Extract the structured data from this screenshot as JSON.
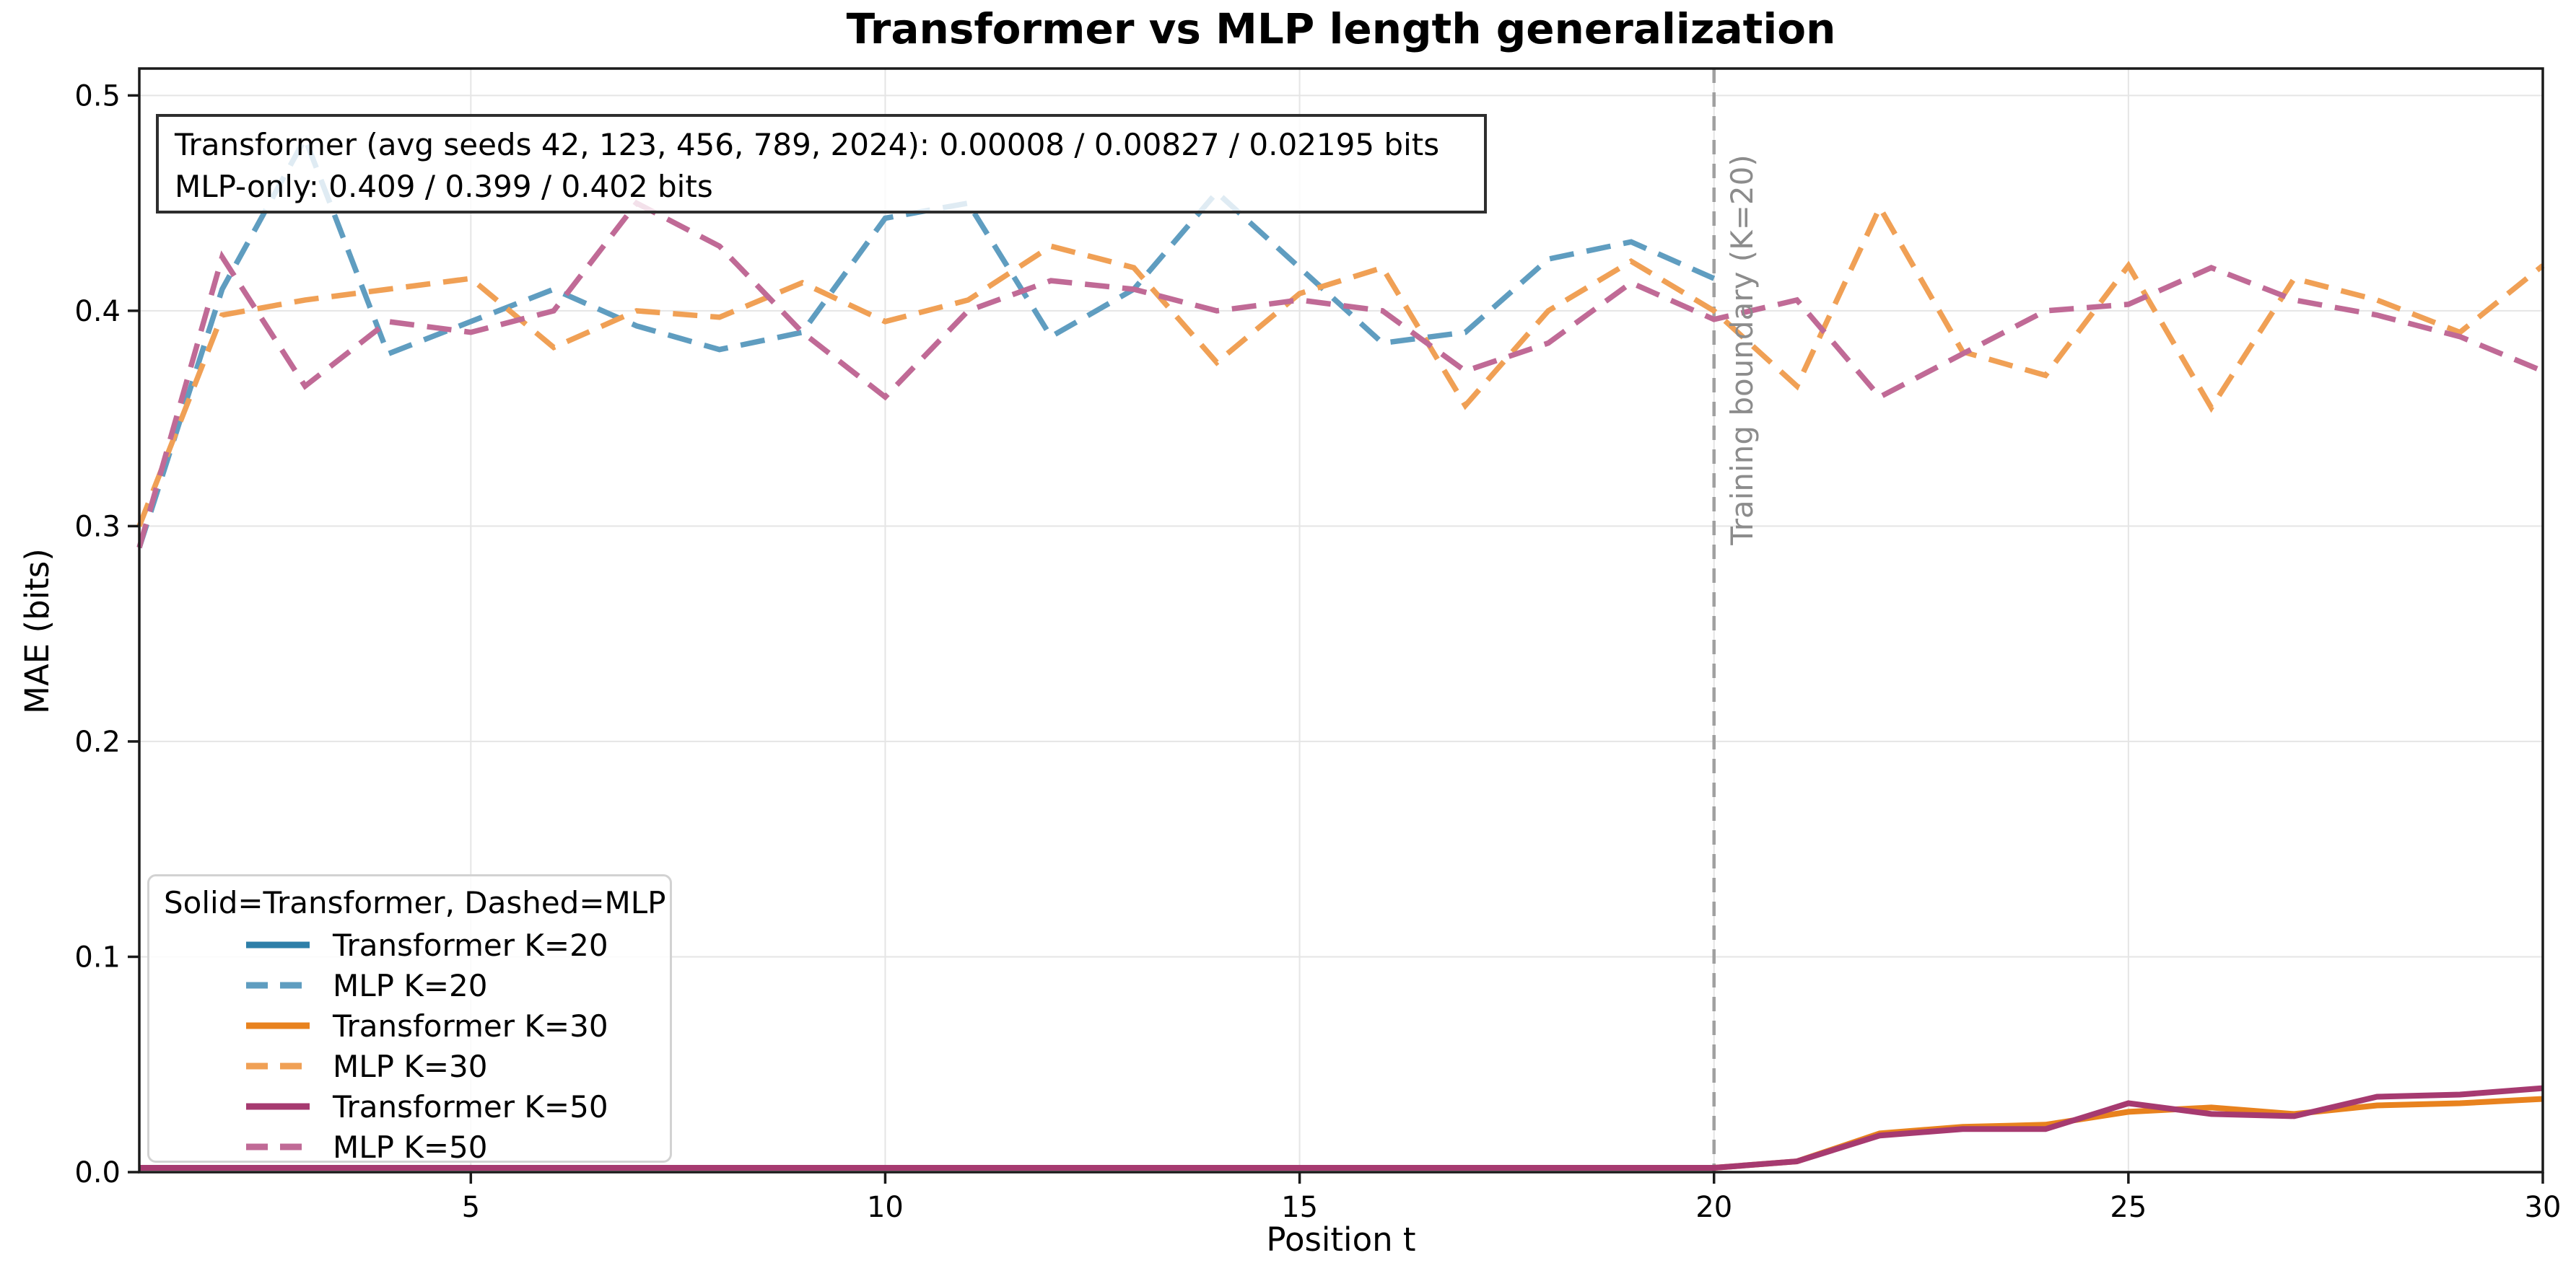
{
  "title": "Transformer vs MLP length generalization",
  "annotation": {
    "lines": [
      "Transformer (avg seeds 42, 123, 456, 789, 2024): 0.00008 / 0.00827 / 0.02195 bits",
      "MLP-only: 0.409 / 0.399 / 0.402 bits"
    ]
  },
  "boundary": {
    "x": 20,
    "label": "Training boundary (K=20)",
    "line_color": "#a0a0a0",
    "label_color": "#8c8c8c"
  },
  "legend": {
    "title": "Solid=Transformer, Dashed=MLP",
    "position": "lower left",
    "entries": [
      "Transformer K=20",
      "MLP K=20",
      "Transformer K=30",
      "MLP K=30",
      "Transformer K=50",
      "MLP K=50"
    ]
  },
  "axes": {
    "xlabel": "Position t",
    "ylabel": "MAE (bits)",
    "xlim": [
      1,
      30
    ],
    "ylim": [
      0,
      0.5125
    ],
    "x_ticks": [
      "5",
      "10",
      "15",
      "20",
      "25",
      "30"
    ],
    "y_ticks": [
      "0.0",
      "0.1",
      "0.2",
      "0.3",
      "0.4",
      "0.5"
    ],
    "grid": true
  },
  "colors": {
    "spine": "#1a1a1a",
    "grid": "#e5e5e5",
    "tick_label": "#000000"
  },
  "chart_data": {
    "type": "line",
    "title": "Transformer vs MLP length generalization",
    "xlabel": "Position t",
    "ylabel": "MAE (bits)",
    "xlim": [
      1,
      30
    ],
    "ylim": [
      0,
      0.5125
    ],
    "x": [
      1,
      2,
      3,
      4,
      5,
      6,
      7,
      8,
      9,
      10,
      11,
      12,
      13,
      14,
      15,
      16,
      17,
      18,
      19,
      20,
      21,
      22,
      23,
      24,
      25,
      26,
      27,
      28,
      29,
      30
    ],
    "series": [
      {
        "name": "Transformer K=20",
        "style": "solid",
        "color": "#2e7fa8",
        "values": [
          0.002,
          0.002,
          0.002,
          0.002,
          0.002,
          0.002,
          0.002,
          0.002,
          0.002,
          0.002,
          0.002,
          0.002,
          0.002,
          0.002,
          0.002,
          0.002,
          0.002,
          0.002,
          0.002,
          0.002
        ]
      },
      {
        "name": "MLP K=20",
        "style": "dashed",
        "color": "#5f9dc0",
        "values": [
          0.29,
          0.41,
          0.48,
          0.38,
          0.395,
          0.41,
          0.393,
          0.382,
          0.39,
          0.443,
          0.45,
          0.388,
          0.41,
          0.455,
          0.42,
          0.385,
          0.39,
          0.424,
          0.432,
          0.415
        ]
      },
      {
        "name": "Transformer K=30",
        "style": "solid",
        "color": "#e8821e",
        "values": [
          0.002,
          0.002,
          0.002,
          0.002,
          0.002,
          0.002,
          0.002,
          0.002,
          0.002,
          0.002,
          0.002,
          0.002,
          0.002,
          0.002,
          0.002,
          0.002,
          0.002,
          0.002,
          0.002,
          0.002,
          0.005,
          0.018,
          0.021,
          0.022,
          0.028,
          0.03,
          0.027,
          0.031,
          0.032,
          0.034
        ]
      },
      {
        "name": "MLP K=30",
        "style": "dashed",
        "color": "#f0a055",
        "values": [
          0.3,
          0.398,
          0.405,
          0.41,
          0.415,
          0.383,
          0.4,
          0.397,
          0.413,
          0.395,
          0.405,
          0.43,
          0.42,
          0.376,
          0.408,
          0.42,
          0.356,
          0.4,
          0.423,
          0.4,
          0.365,
          0.448,
          0.381,
          0.37,
          0.421,
          0.355,
          0.415,
          0.405,
          0.39,
          0.421
        ]
      },
      {
        "name": "Transformer K=50",
        "style": "solid",
        "color": "#a63a70",
        "values": [
          0.002,
          0.002,
          0.002,
          0.002,
          0.002,
          0.002,
          0.002,
          0.002,
          0.002,
          0.002,
          0.002,
          0.002,
          0.002,
          0.002,
          0.002,
          0.002,
          0.002,
          0.002,
          0.002,
          0.002,
          0.005,
          0.017,
          0.02,
          0.02,
          0.032,
          0.027,
          0.026,
          0.035,
          0.036,
          0.039
        ]
      },
      {
        "name": "MLP K=50",
        "style": "dashed",
        "color": "#c06a96",
        "values": [
          0.29,
          0.425,
          0.365,
          0.395,
          0.39,
          0.4,
          0.45,
          0.43,
          0.39,
          0.36,
          0.4,
          0.414,
          0.41,
          0.4,
          0.405,
          0.4,
          0.372,
          0.385,
          0.413,
          0.396,
          0.405,
          0.36,
          0.38,
          0.4,
          0.403,
          0.42,
          0.405,
          0.398,
          0.388,
          0.372
        ]
      }
    ]
  }
}
